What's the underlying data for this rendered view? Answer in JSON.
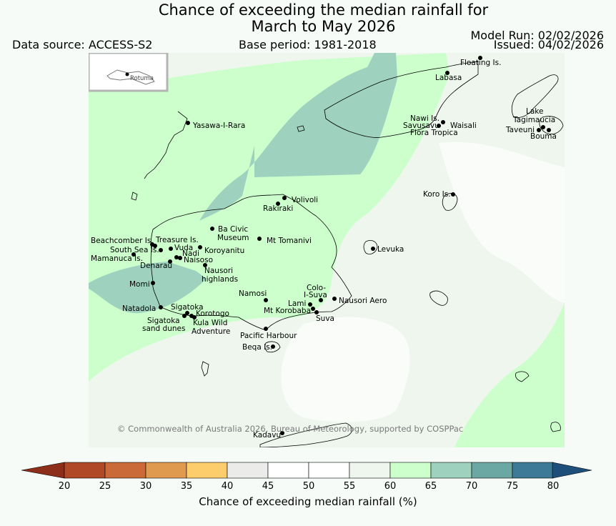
{
  "title_line1": "Chance of exceeding the median rainfall for",
  "title_line2": "March to May 2026",
  "data_source": "Data source: ACCESS-S2",
  "base_period": "Base period: 1981-2018",
  "model_run": "Model Run: 02/02/2026",
  "issued": "Issued: 04/02/2026",
  "inset_label": "Rotuma",
  "copyright": "© Commonwealth of Australia 2026, Bureau of Meteorology, supported by COSPPac",
  "colorbar": {
    "label": "Chance of exceeding median rainfall (%)",
    "ticks": [
      "20",
      "25",
      "30",
      "35",
      "40",
      "45",
      "50",
      "55",
      "60",
      "65",
      "70",
      "75",
      "80"
    ],
    "colors": [
      "#b04a26",
      "#ca6a38",
      "#e09a50",
      "#fdcd6c",
      "#ebebea",
      "#ffffff",
      "#ffffff",
      "#eef6ee",
      "#ccffcc",
      "#9ed2be",
      "#6ba8a4",
      "#3d7a98"
    ],
    "under_color": "#8c2e1a",
    "over_color": "#1d4f7a"
  },
  "places": [
    {
      "name": "Floating Is."
    },
    {
      "name": "Labasa"
    },
    {
      "name": "Nawi Is."
    },
    {
      "name": "Savusavu"
    },
    {
      "name": "Waisali"
    },
    {
      "name": "Flora Tropica"
    },
    {
      "name": "Lake"
    },
    {
      "name": "Tagimaucia"
    },
    {
      "name": "Taveuni"
    },
    {
      "name": "Bouma"
    },
    {
      "name": "Yasawa-I-Rara"
    },
    {
      "name": "Koro Is."
    },
    {
      "name": "Volivoli"
    },
    {
      "name": "Rakiraki"
    },
    {
      "name": "Ba Civic"
    },
    {
      "name": "Museum"
    },
    {
      "name": "Mt Tomanivi"
    },
    {
      "name": "Beachcomber Is."
    },
    {
      "name": "Treasure Is."
    },
    {
      "name": "South Sea Is."
    },
    {
      "name": "Vuda"
    },
    {
      "name": "Koroyanitu"
    },
    {
      "name": "Nadi"
    },
    {
      "name": "Mamanuca Is."
    },
    {
      "name": "Naisoso"
    },
    {
      "name": "Denarau"
    },
    {
      "name": "Nausori"
    },
    {
      "name": "highlands"
    },
    {
      "name": "Levuka"
    },
    {
      "name": "Momi"
    },
    {
      "name": "Colo-"
    },
    {
      "name": "I-Suva"
    },
    {
      "name": "Namosi"
    },
    {
      "name": "Nausori Aero"
    },
    {
      "name": "Lami"
    },
    {
      "name": "Natadola"
    },
    {
      "name": "Sigatoka"
    },
    {
      "name": "Mt Korobaba"
    },
    {
      "name": "Korotogo"
    },
    {
      "name": "Suva"
    },
    {
      "name": "Sigatoka"
    },
    {
      "name": "sand dunes"
    },
    {
      "name": "Kula Wild"
    },
    {
      "name": "Adventure"
    },
    {
      "name": "Pacific Harbour"
    },
    {
      "name": "Beqa Is."
    },
    {
      "name": "Kadavu"
    }
  ]
}
